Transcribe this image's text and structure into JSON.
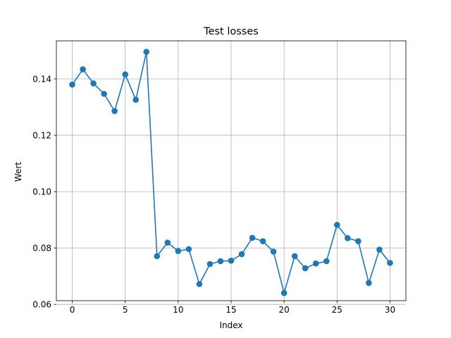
{
  "chart_data": {
    "type": "line",
    "title": "Test losses",
    "xlabel": "Index",
    "ylabel": "Wert",
    "xlim": [
      -1.5,
      31.5
    ],
    "ylim": [
      0.0613,
      0.1535
    ],
    "xticks": [
      0,
      5,
      10,
      15,
      20,
      25,
      30
    ],
    "xtick_labels": [
      "0",
      "5",
      "10",
      "15",
      "20",
      "25",
      "30"
    ],
    "yticks": [
      0.06,
      0.08,
      0.1,
      0.12,
      0.14
    ],
    "ytick_labels": [
      "0.06",
      "0.08",
      "0.10",
      "0.12",
      "0.14"
    ],
    "grid": true,
    "legend": "none",
    "color": "#1f77b4",
    "marker": "circle",
    "x": [
      0,
      1,
      2,
      3,
      4,
      5,
      6,
      7,
      8,
      9,
      10,
      11,
      12,
      13,
      14,
      15,
      16,
      17,
      18,
      19,
      20,
      21,
      22,
      23,
      24,
      25,
      26,
      27,
      28,
      29,
      30
    ],
    "values": [
      0.138,
      0.1434,
      0.1384,
      0.1347,
      0.1286,
      0.1416,
      0.1326,
      0.1496,
      0.0771,
      0.0819,
      0.0789,
      0.0796,
      0.0672,
      0.0743,
      0.0753,
      0.0755,
      0.0778,
      0.0836,
      0.0824,
      0.0787,
      0.064,
      0.0771,
      0.0728,
      0.0745,
      0.0753,
      0.0882,
      0.0835,
      0.0824,
      0.0676,
      0.0794,
      0.0747
    ]
  }
}
